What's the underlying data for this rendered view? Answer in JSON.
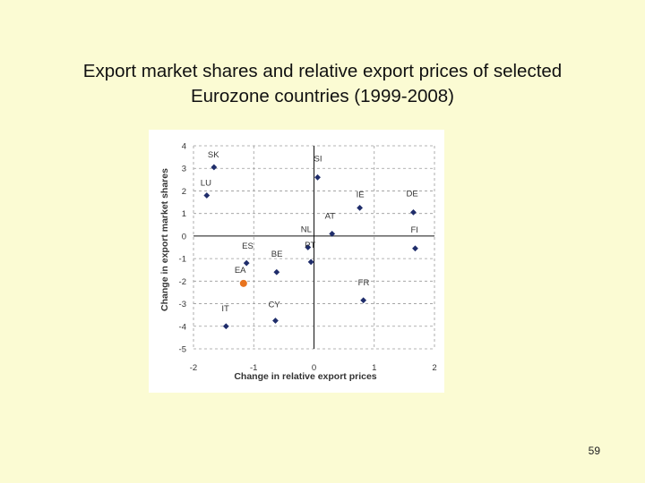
{
  "slide": {
    "title_line1": "Export market shares and  relative export prices of selected",
    "title_line2": "Eurozone countries (1999-2008)",
    "page_number": "59"
  },
  "chart_data": {
    "type": "scatter",
    "title": "",
    "xlabel": "Change in relative export prices",
    "ylabel": "Change in export market shares",
    "xlim": [
      -2,
      2
    ],
    "ylim": [
      -5,
      4
    ],
    "xticks": [
      -2,
      -1,
      0,
      1,
      2
    ],
    "yticks": [
      4,
      3,
      2,
      1,
      0,
      -1,
      -2,
      -3,
      -4,
      -5
    ],
    "xtick_labels": [
      "-2",
      "-1",
      "0",
      "1",
      "2"
    ],
    "ytick_labels": [
      "4",
      "3",
      "2",
      "1",
      "0",
      "-1",
      "-2",
      "-3",
      "-4",
      "-5"
    ],
    "grid": "dashed",
    "colors": {
      "points": "#1f2d6b",
      "highlight": "#e8741e",
      "labels": "#333333",
      "grid": "#9a9a9a"
    },
    "points": [
      {
        "label": "SK",
        "x": -1.66,
        "y": 3.05
      },
      {
        "label": "LU",
        "x": -1.78,
        "y": 1.8
      },
      {
        "label": "SI",
        "x": 0.06,
        "y": 2.6
      },
      {
        "label": "IE",
        "x": 0.76,
        "y": 1.25
      },
      {
        "label": "DE",
        "x": 1.65,
        "y": 1.05
      },
      {
        "label": "AT",
        "x": 0.3,
        "y": 0.1
      },
      {
        "label": "NL",
        "x": -0.1,
        "y": -0.5
      },
      {
        "label": "FI",
        "x": 1.68,
        "y": -0.55
      },
      {
        "label": "PT",
        "x": -0.05,
        "y": -1.15
      },
      {
        "label": "ES",
        "x": -1.12,
        "y": -1.2
      },
      {
        "label": "BE",
        "x": -0.62,
        "y": -1.6
      },
      {
        "label": "EA",
        "x": -1.17,
        "y": -2.1,
        "highlight": true
      },
      {
        "label": "FR",
        "x": 0.82,
        "y": -2.85
      },
      {
        "label": "CY",
        "x": -0.64,
        "y": -3.75
      },
      {
        "label": "IT",
        "x": -1.46,
        "y": -4.0
      }
    ]
  }
}
